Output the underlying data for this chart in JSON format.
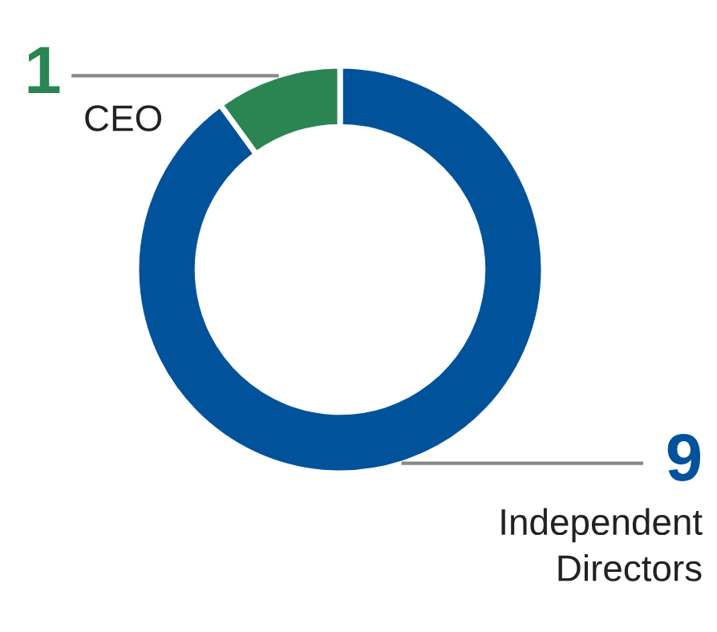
{
  "chart_data": {
    "type": "donut",
    "categories": [
      "Independent Directors",
      "CEO"
    ],
    "values": [
      9,
      1
    ],
    "colors": [
      "#00529b",
      "#2a8552"
    ],
    "data_labels": true,
    "legend": false
  }
}
